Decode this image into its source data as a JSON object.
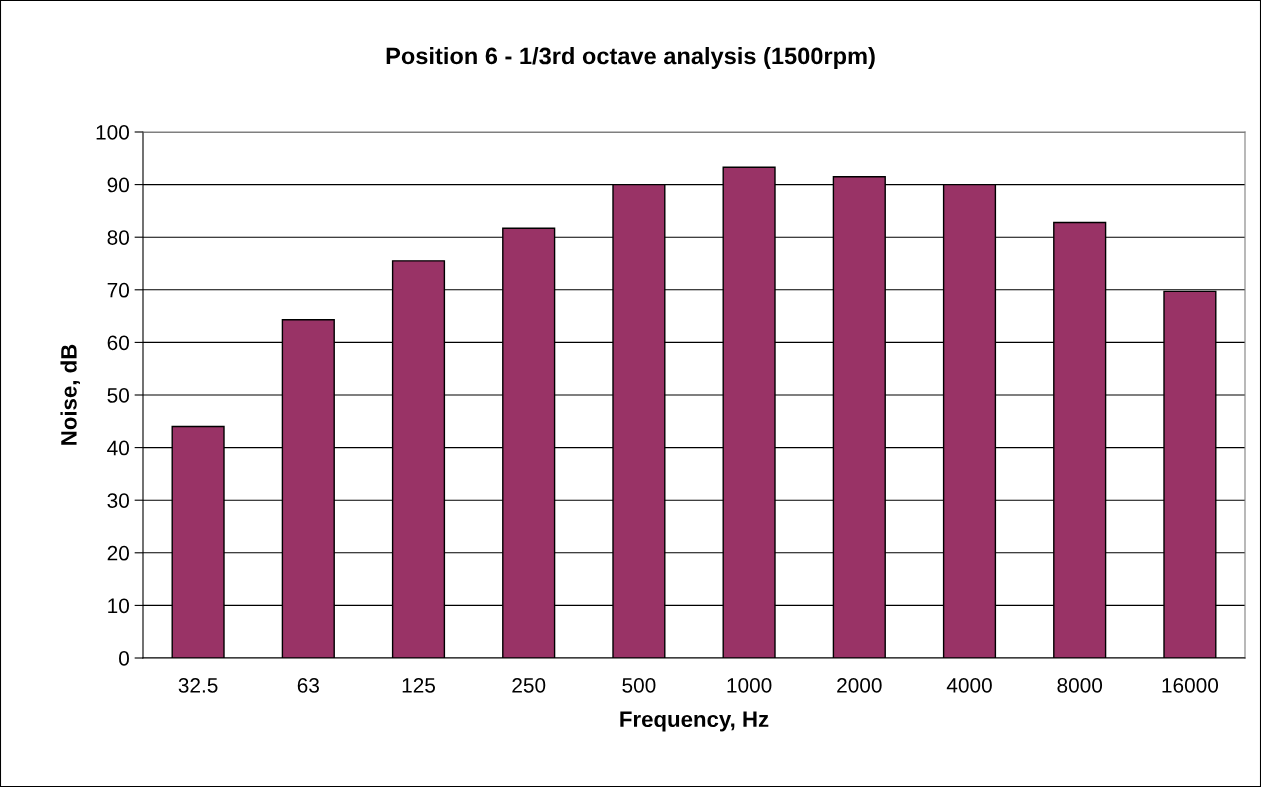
{
  "chart_data": {
    "type": "bar",
    "title": "Position 6 - 1/3rd octave analysis (1500rpm)",
    "xlabel": "Frequency, Hz",
    "ylabel": "Noise, dB",
    "categories": [
      "32.5",
      "63",
      "125",
      "250",
      "500",
      "1000",
      "2000",
      "4000",
      "8000",
      "16000"
    ],
    "series": [
      {
        "color": "#993366",
        "values": [
          44,
          64.3,
          75.5,
          81.7,
          90,
          93.3,
          91.5,
          90,
          82.8,
          69.7
        ]
      }
    ],
    "ylim": [
      0,
      100
    ],
    "yticks": [
      0,
      10,
      20,
      30,
      40,
      50,
      60,
      70,
      80,
      90,
      100
    ],
    "grid": "y",
    "legend": false
  }
}
